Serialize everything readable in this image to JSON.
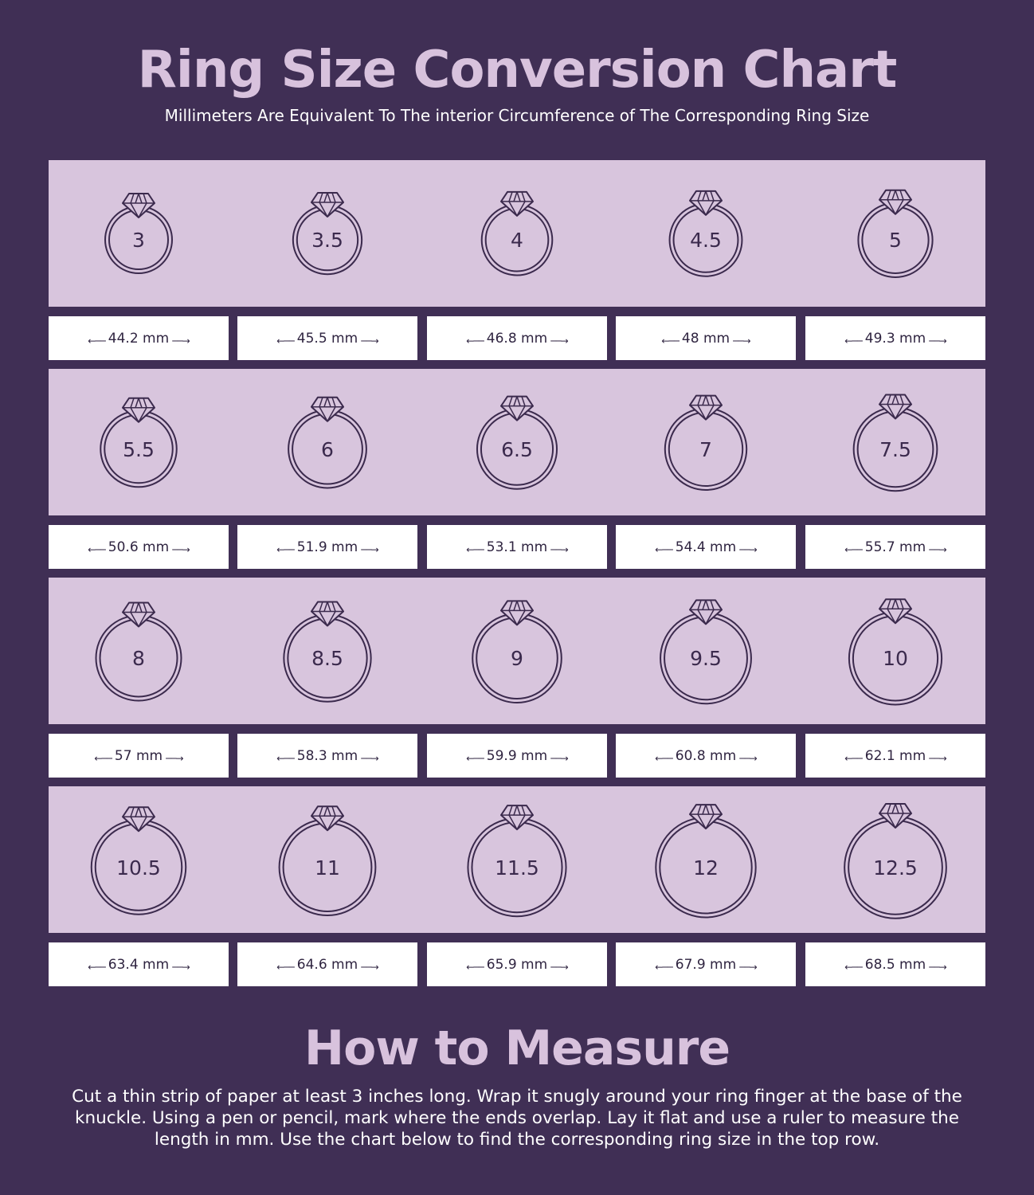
{
  "title": "Ring Size Conversion Chart",
  "subtitle": "Millimeters Are Equivalent To The interior Circumference of The Corresponding Ring Size",
  "rows": [
    {
      "sizes": [
        "3",
        "3.5",
        "4",
        "4.5",
        "5"
      ],
      "mm": [
        "44.2 mm",
        "45.5 mm",
        "46.8 mm",
        "48 mm",
        "49.3 mm"
      ]
    },
    {
      "sizes": [
        "5.5",
        "6",
        "6.5",
        "7",
        "7.5"
      ],
      "mm": [
        "50.6 mm",
        "51.9 mm",
        "53.1 mm",
        "54.4 mm",
        "55.7 mm"
      ]
    },
    {
      "sizes": [
        "8",
        "8.5",
        "9",
        "9.5",
        "10"
      ],
      "mm": [
        "57 mm",
        "58.3 mm",
        "59.9 mm",
        "60.8 mm",
        "62.1 mm"
      ]
    },
    {
      "sizes": [
        "10.5",
        "11",
        "11.5",
        "12",
        "12.5"
      ],
      "mm": [
        "63.4 mm",
        "64.6 mm",
        "65.9 mm",
        "67.9 mm",
        "68.5 mm"
      ]
    }
  ],
  "how_to": {
    "title": "How to Measure",
    "text": "Cut a thin strip of paper at least 3 inches long. Wrap it snugly around your ring finger at the base of the knuckle. Using a pen or pencil, mark where the ends overlap. Lay it flat and use a ruler to measure the length in mm. Use the chart below to find the corresponding ring size in the top row."
  },
  "colors": {
    "background": "#402f55",
    "band": "#d8c5dd",
    "accent_text": "#d8c2dd",
    "ring_stroke": "#3b2a4d"
  },
  "icons": [
    "ring-icon",
    "left-arrow-icon",
    "right-arrow-icon"
  ]
}
